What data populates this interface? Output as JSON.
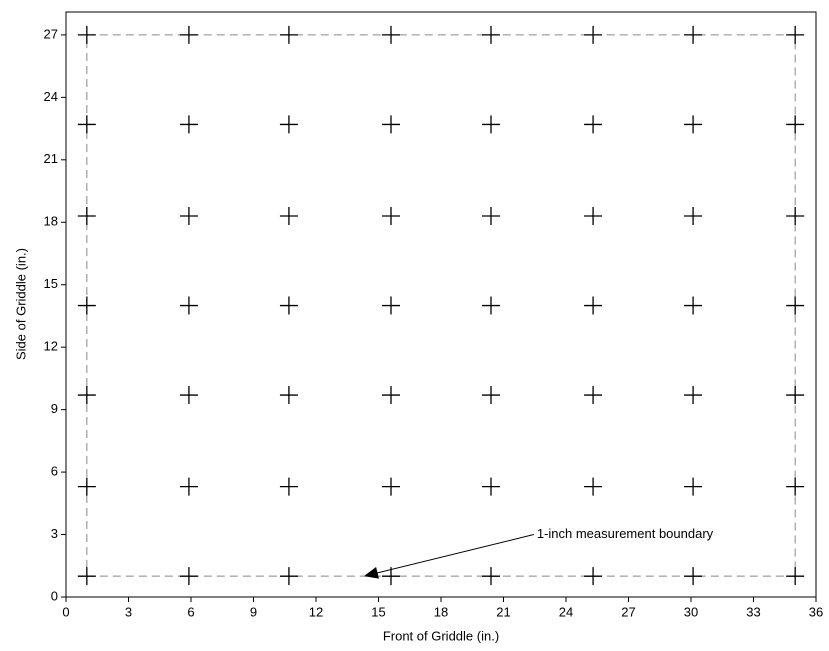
{
  "chart_data": {
    "type": "scatter",
    "x_label": "Front of Griddle (in.)",
    "y_label": "Side of Griddle (in.)",
    "x": [
      1,
      5.9,
      10.7,
      15.6,
      20.4,
      25.3,
      30.1,
      35,
      1,
      5.9,
      10.7,
      15.6,
      20.4,
      25.3,
      30.1,
      35,
      1,
      5.9,
      10.7,
      15.6,
      20.4,
      25.3,
      30.1,
      35,
      1,
      5.9,
      10.7,
      15.6,
      20.4,
      25.3,
      30.1,
      35,
      1,
      5.9,
      10.7,
      15.6,
      20.4,
      25.3,
      30.1,
      35,
      1,
      5.9,
      10.7,
      15.6,
      20.4,
      25.3,
      30.1,
      35,
      1,
      5.9,
      10.7,
      15.6,
      20.4,
      25.3,
      30.1,
      35
    ],
    "values": [
      1,
      1,
      1,
      1,
      1,
      1,
      1,
      1,
      5.3,
      5.3,
      5.3,
      5.3,
      5.3,
      5.3,
      5.3,
      5.3,
      9.7,
      9.7,
      9.7,
      9.7,
      9.7,
      9.7,
      9.7,
      9.7,
      14,
      14,
      14,
      14,
      14,
      14,
      14,
      14,
      18.3,
      18.3,
      18.3,
      18.3,
      18.3,
      18.3,
      18.3,
      18.3,
      22.7,
      22.7,
      22.7,
      22.7,
      22.7,
      22.7,
      22.7,
      22.7,
      27,
      27,
      27,
      27,
      27,
      27,
      27,
      27
    ],
    "color": "#000000",
    "boundary": {
      "x": [
        1,
        35
      ],
      "y": [
        1,
        27
      ],
      "color": "#888888"
    },
    "annotation": {
      "text": "1-inch measurement boundary",
      "xy": [
        14.3,
        1
      ],
      "xytext": [
        22.6,
        3
      ]
    },
    "xlim": [
      0,
      36
    ],
    "xticks": [
      0,
      3,
      6,
      9,
      12,
      15,
      18,
      21,
      24,
      27,
      30,
      33,
      36
    ],
    "ylim": [
      0,
      28.1
    ],
    "yticks": [
      0,
      3,
      6,
      9,
      12,
      15,
      18,
      21,
      24,
      27
    ]
  }
}
